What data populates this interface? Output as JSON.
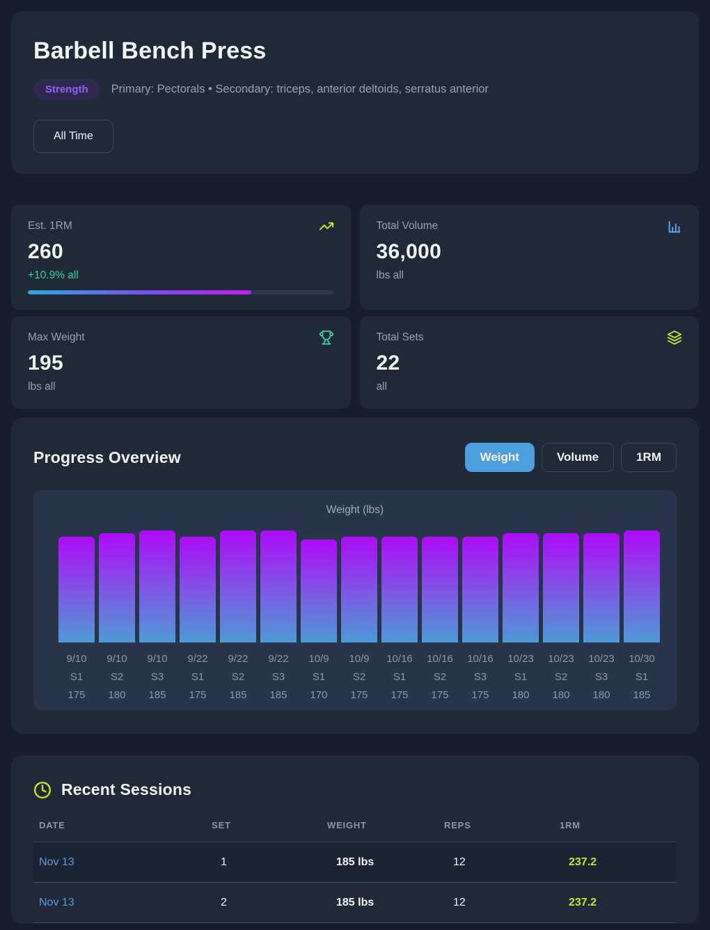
{
  "header": {
    "title": "Barbell Bench Press",
    "badge": "Strength",
    "muscles": "Primary: Pectorals • Secondary: triceps, anterior deltoids, serratus anterior",
    "time_filter": "All Time"
  },
  "stats": [
    {
      "label": "Est. 1RM",
      "icon": "trending-up-icon",
      "value": "260",
      "sub": "+10.9% all",
      "progress_pct": 73
    },
    {
      "label": "Total Volume",
      "icon": "bar-chart-icon",
      "value": "36,000",
      "sub": "lbs all"
    },
    {
      "label": "Max Weight",
      "icon": "trophy-icon",
      "value": "195",
      "sub": "lbs all"
    },
    {
      "label": "Total Sets",
      "icon": "layers-icon",
      "value": "22",
      "sub": "all"
    }
  ],
  "progress": {
    "title": "Progress Overview",
    "tabs": [
      {
        "label": "Weight",
        "active": true
      },
      {
        "label": "Volume",
        "active": false
      },
      {
        "label": "1RM",
        "active": false
      }
    ]
  },
  "chart_data": {
    "type": "bar",
    "title": "Weight (lbs)",
    "categories": [
      "9/10",
      "9/10",
      "9/10",
      "9/22",
      "9/22",
      "9/22",
      "10/9",
      "10/9",
      "10/16",
      "10/16",
      "10/16",
      "10/23",
      "10/23",
      "10/23",
      "10/30"
    ],
    "set_labels": [
      "S1",
      "S2",
      "S3",
      "S1",
      "S2",
      "S3",
      "S1",
      "S2",
      "S1",
      "S2",
      "S3",
      "S1",
      "S2",
      "S3",
      "S1"
    ],
    "values": [
      175,
      180,
      185,
      175,
      185,
      185,
      170,
      175,
      175,
      175,
      175,
      180,
      180,
      180,
      185
    ],
    "xlabel": "",
    "ylabel": "Weight (lbs)",
    "ylim": [
      0,
      185
    ],
    "grid": false,
    "legend": "none",
    "bar_gradient": [
      "#ae0bf8",
      "#7e57e4",
      "#4e9ad6"
    ]
  },
  "sessions": {
    "title": "Recent Sessions",
    "columns": [
      "DATE",
      "SET",
      "WEIGHT",
      "REPS",
      "1RM"
    ],
    "rows": [
      {
        "date": "Nov 13",
        "set": "1",
        "weight": "185 lbs",
        "reps": "12",
        "one_rm": "237.2"
      },
      {
        "date": "Nov 13",
        "set": "2",
        "weight": "185 lbs",
        "reps": "12",
        "one_rm": "237.2"
      }
    ]
  },
  "colors": {
    "page-bg": "#171d2b",
    "card-bg": "#1f2938",
    "panel-bg": "#27344a",
    "row-dark": "#1b2433",
    "lime": "#c3e723",
    "green": "#34d399",
    "blue-icon": "#5aa2e0",
    "tab-blue": "#4d9edd",
    "purple-text": "#8f63f8",
    "purple-bg": "#2f2950",
    "date-blue": "#5e9ad6",
    "bar-top": "#ae0bf8",
    "bar-mid": "#7e57e4",
    "bar-bottom": "#4e9ad6",
    "prog-start": "#2da7d8",
    "prog-mid": "#7a4df0",
    "prog-end": "#c51bf2"
  }
}
